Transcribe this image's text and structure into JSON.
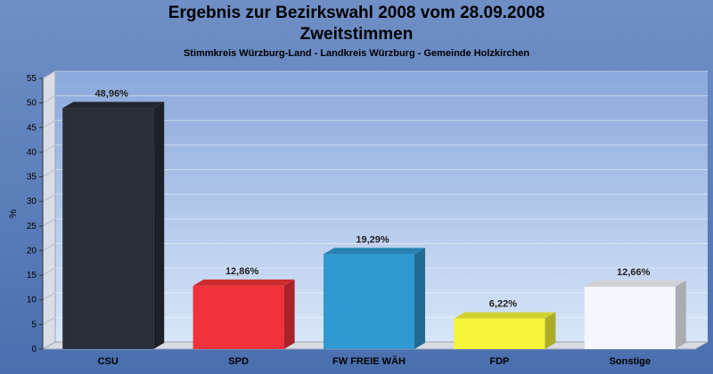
{
  "chart_data": {
    "type": "bar",
    "title": "Ergebnis zur Bezirkswahl 2008 vom 28.09.2008",
    "title2": "Zweitstimmen",
    "subtitle": "Stimmkreis Würzburg-Land - Landkreis Würzburg - Gemeinde Holzkirchen",
    "ylabel": "%",
    "ylim": [
      0,
      55
    ],
    "yticks": [
      0,
      5,
      10,
      15,
      20,
      25,
      30,
      35,
      40,
      45,
      50,
      55
    ],
    "categories": [
      "CSU",
      "SPD",
      "FW FREIE WÄH",
      "FDP",
      "Sonstige"
    ],
    "values": [
      48.96,
      12.86,
      19.29,
      6.22,
      12.66
    ],
    "labels": [
      "48,96%",
      "12,86%",
      "19,29%",
      "6,22%",
      "12,66%"
    ],
    "colors": [
      "#2a2e38",
      "#f2323a",
      "#2f99d2",
      "#f6f53a",
      "#f4f6fb"
    ],
    "grid": true
  }
}
